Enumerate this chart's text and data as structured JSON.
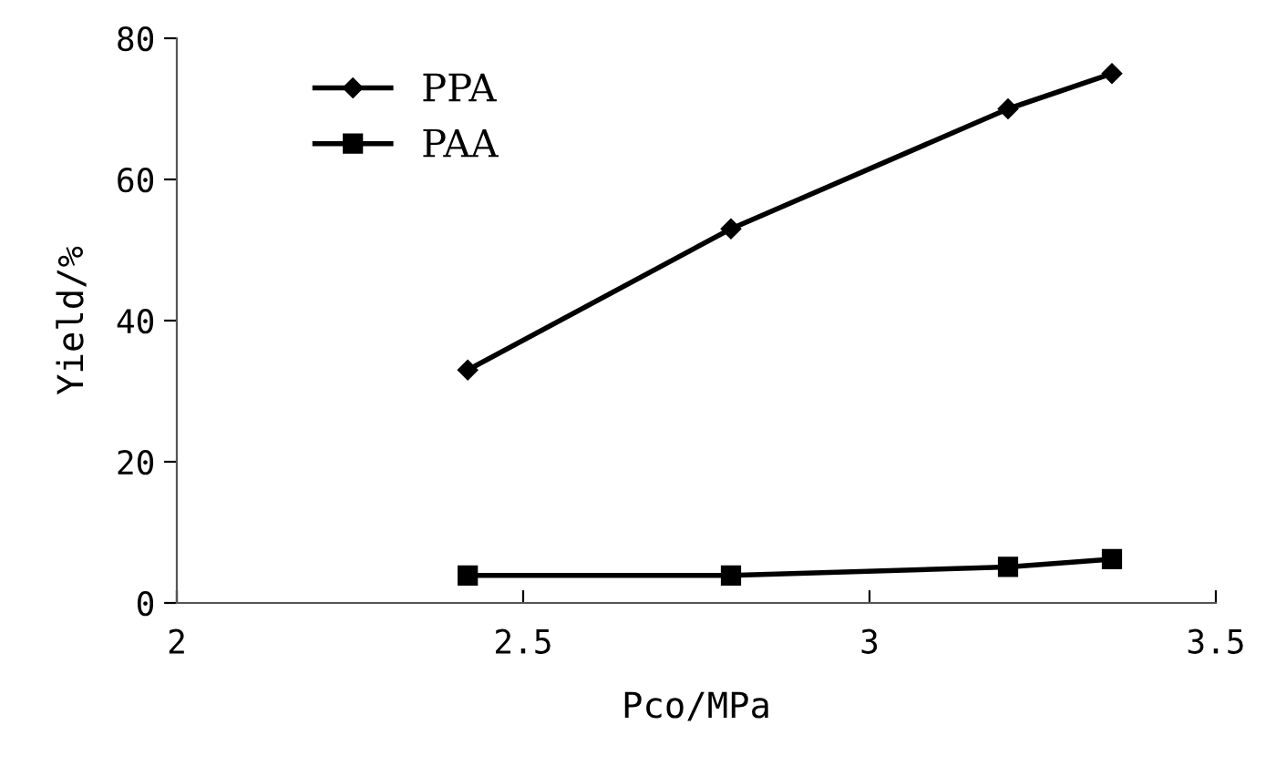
{
  "chart_data": {
    "type": "line",
    "xlabel": "Pco/MPa",
    "ylabel": "Yield/%",
    "x": [
      2.42,
      2.8,
      3.2,
      3.35
    ],
    "series": [
      {
        "name": "PPA",
        "color": "#000000",
        "marker": "diamond",
        "values": [
          33,
          53,
          70,
          75
        ]
      },
      {
        "name": "PAA",
        "color": "#000000",
        "marker": "square",
        "values": [
          3.9,
          3.9,
          5.1,
          6.2
        ]
      }
    ],
    "xlim": [
      2,
      3.5
    ],
    "xticks": [
      2,
      2.5,
      3,
      3.5
    ],
    "ylim": [
      0,
      80
    ],
    "yticks": [
      0,
      20,
      40,
      60,
      80
    ],
    "grid": false,
    "legend": "top left",
    "line_style": "solid"
  }
}
